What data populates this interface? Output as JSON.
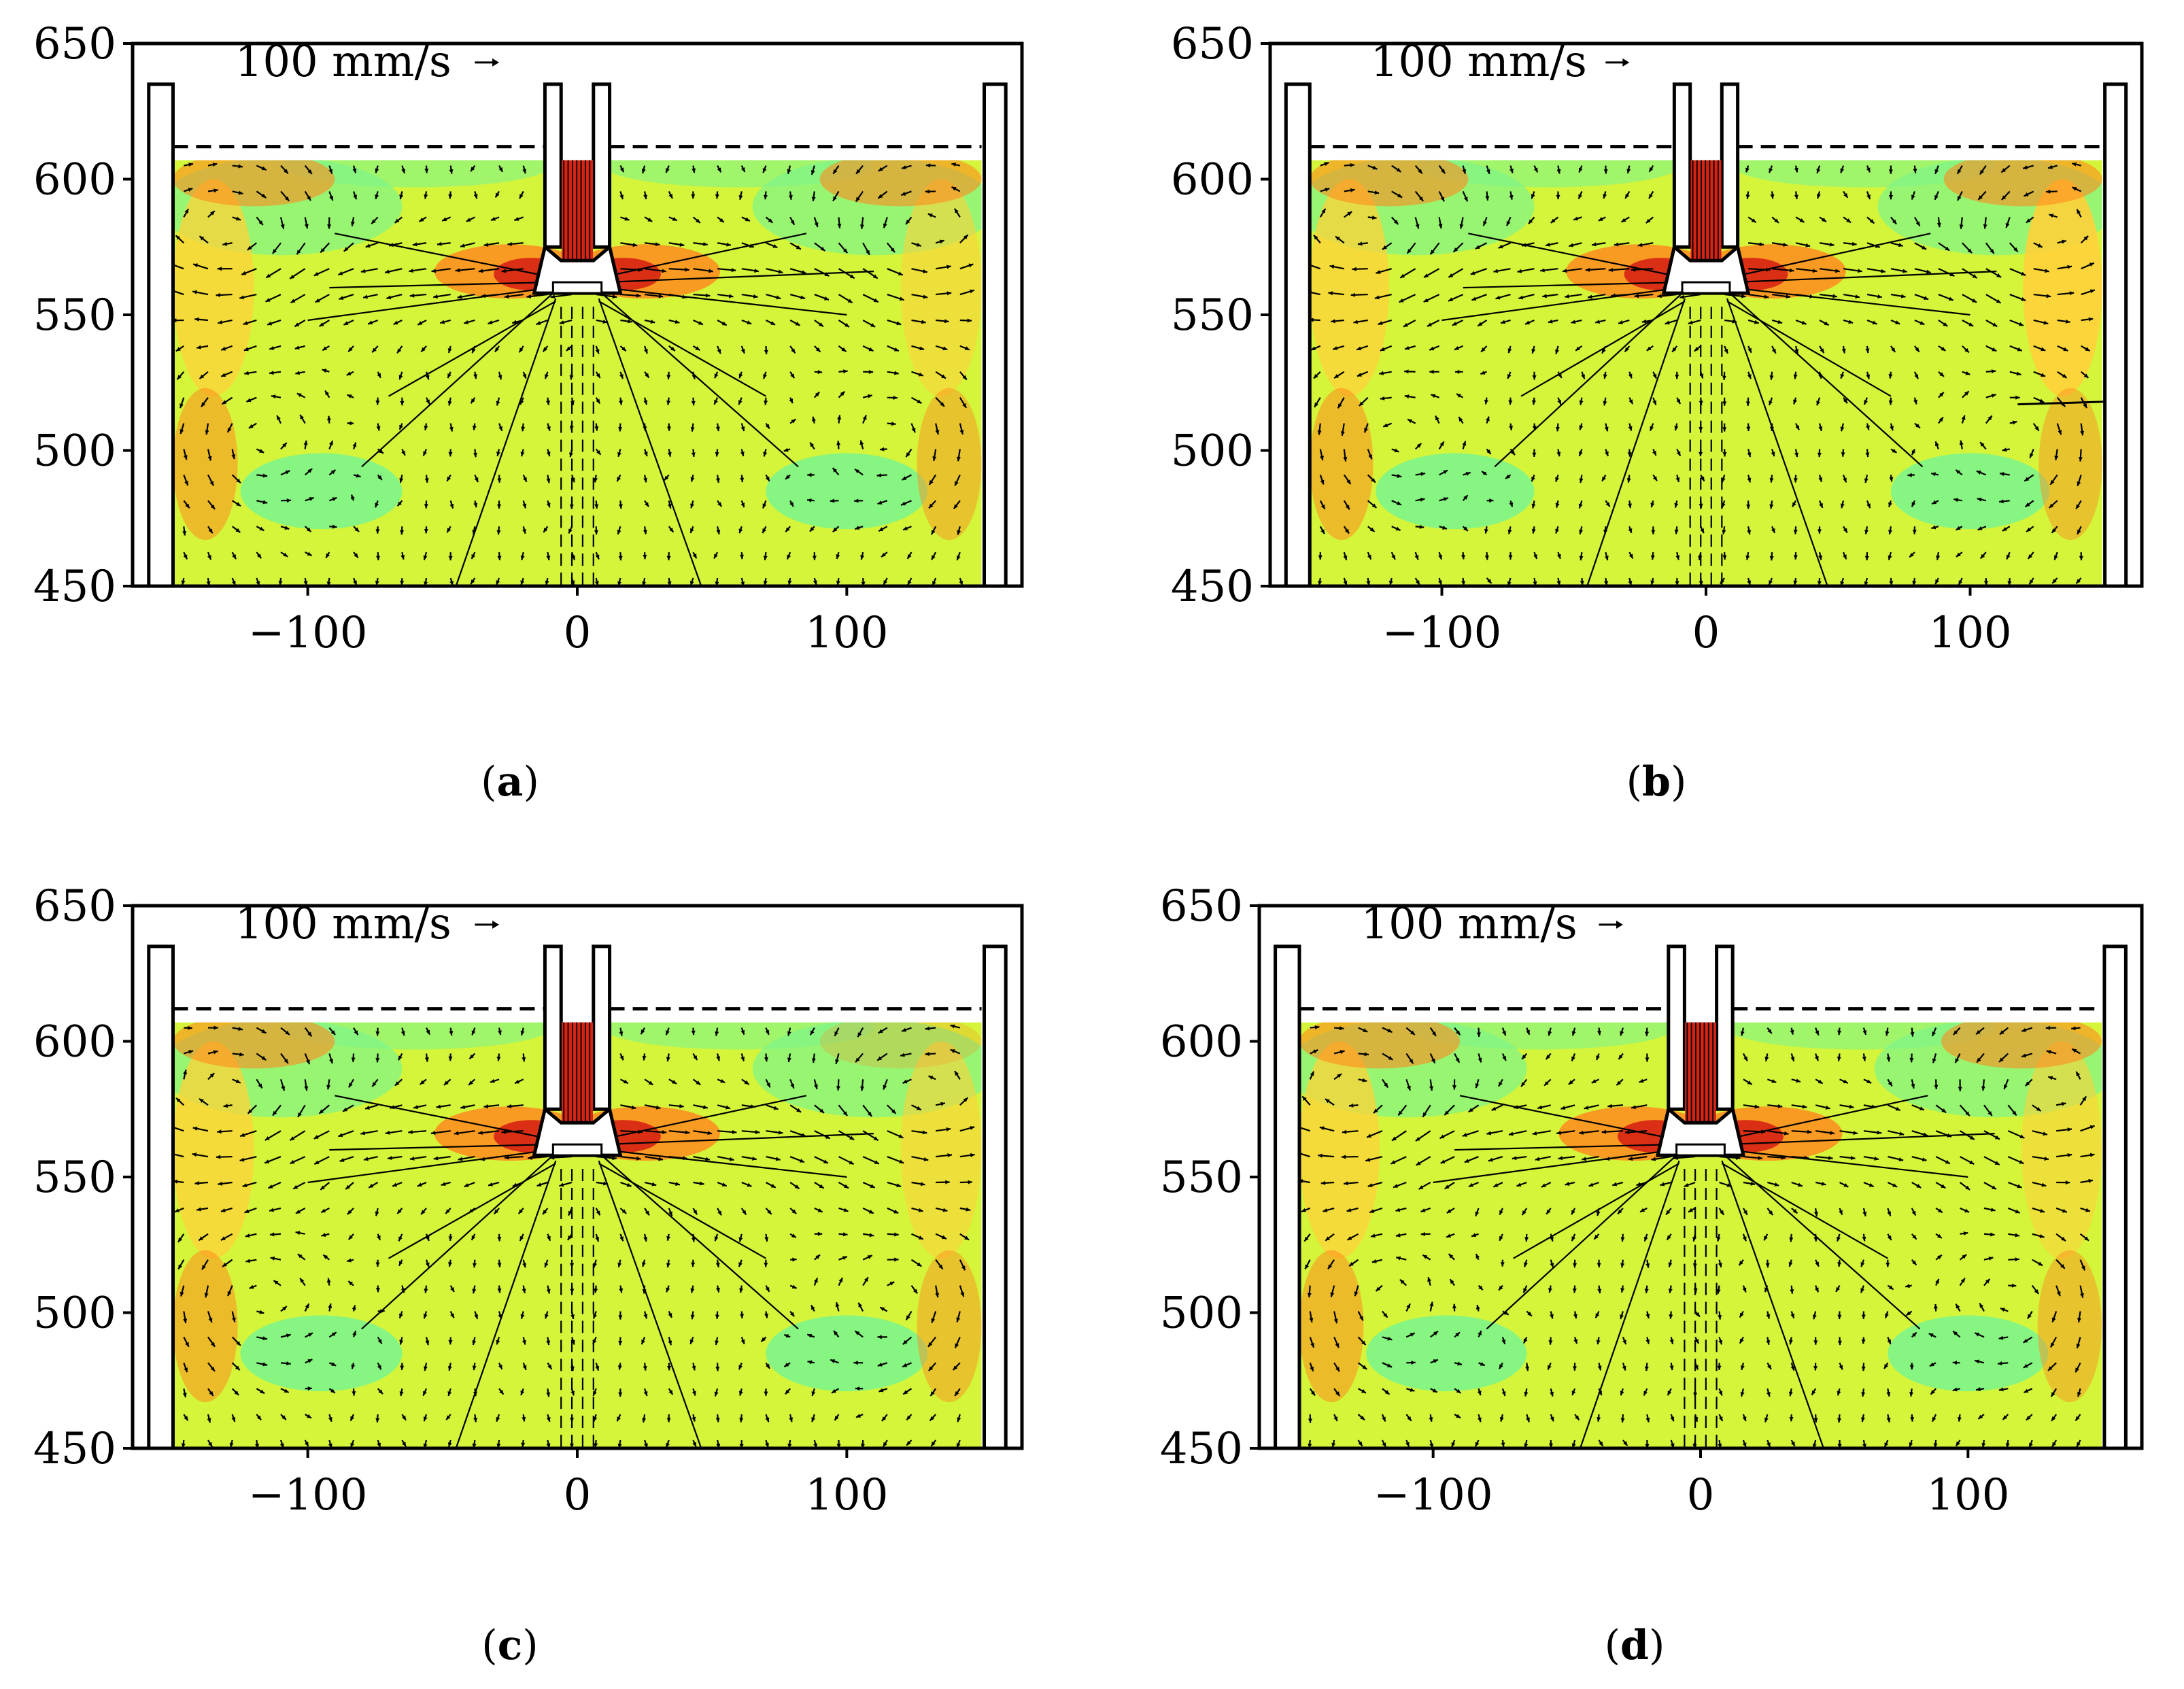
{
  "figure": {
    "panels": [
      {
        "id": "a",
        "caption_open": "(",
        "caption_letter": "a",
        "caption_close": ")",
        "scale_label": "100 mm/s",
        "right_jet": false
      },
      {
        "id": "b",
        "caption_open": "(",
        "caption_letter": "b",
        "caption_close": ")",
        "scale_label": "100 mm/s",
        "right_jet": true
      },
      {
        "id": "c",
        "caption_open": "(",
        "caption_letter": "c",
        "caption_close": ")",
        "scale_label": "100 mm/s",
        "right_jet": false
      },
      {
        "id": "d",
        "caption_open": "(",
        "caption_letter": "d",
        "caption_close": ")",
        "scale_label": "100 mm/s",
        "right_jet": false
      }
    ]
  },
  "chart_data": {
    "type": "vector-field",
    "title": "",
    "xlabel": "",
    "ylabel": "",
    "xlim": [
      -165,
      165
    ],
    "ylim": [
      450,
      650
    ],
    "xticks": [
      -100,
      0,
      100
    ],
    "xtick_labels": [
      "−100",
      "0",
      "100"
    ],
    "yticks": [
      450,
      500,
      550,
      600,
      650
    ],
    "ytick_labels": [
      "450",
      "500",
      "550",
      "600",
      "650"
    ],
    "reference_vector": {
      "label": "100 mm/s"
    },
    "free_surface_level": 612,
    "geometry": {
      "mold_half_width": 150,
      "liquid_top": 607,
      "wall_top": 635,
      "sen_outer_half_width": 10,
      "sen_inner_half_width": 7,
      "sen_bottom": 560,
      "port_level": 565
    },
    "colors": {
      "slow": "#7ef58a",
      "medium": "#d4f53a",
      "fast": "#ffd23a",
      "faster": "#ff8a1e",
      "fastest": "#d62414",
      "arrow": "#000000"
    }
  }
}
